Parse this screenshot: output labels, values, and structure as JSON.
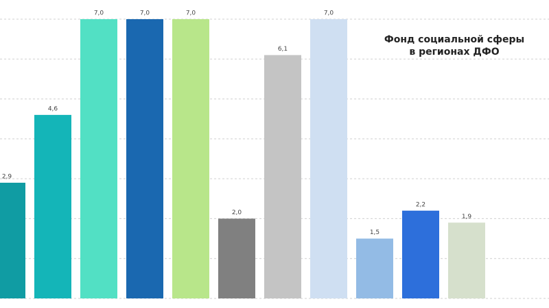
{
  "chart_data": {
    "type": "bar",
    "title": [
      "Фонд социальной сферы",
      "в регионах ДФО"
    ],
    "categories": [
      null,
      null,
      null,
      null,
      null,
      null,
      null,
      null,
      null,
      null,
      null
    ],
    "values": [
      2.9,
      4.6,
      7.0,
      7.0,
      7.0,
      2.0,
      6.1,
      7.0,
      1.5,
      2.2,
      1.9
    ],
    "value_labels": [
      "2,9",
      "4,6",
      "7,0",
      "7,0",
      "7,0",
      "2,0",
      "6,1",
      "7,0",
      "1,5",
      "2,2",
      "1,9"
    ],
    "colors": [
      "#109ca3",
      "#14b5b8",
      "#52e0c4",
      "#1a68b0",
      "#b8e68a",
      "#808080",
      "#c4c4c4",
      "#cfdff2",
      "#93bbe5",
      "#2d6fdb",
      "#d6e0cc"
    ],
    "ylim": [
      0,
      7
    ],
    "yticks": [
      0,
      1,
      2,
      3,
      4,
      5,
      6,
      7
    ],
    "grid": true
  }
}
